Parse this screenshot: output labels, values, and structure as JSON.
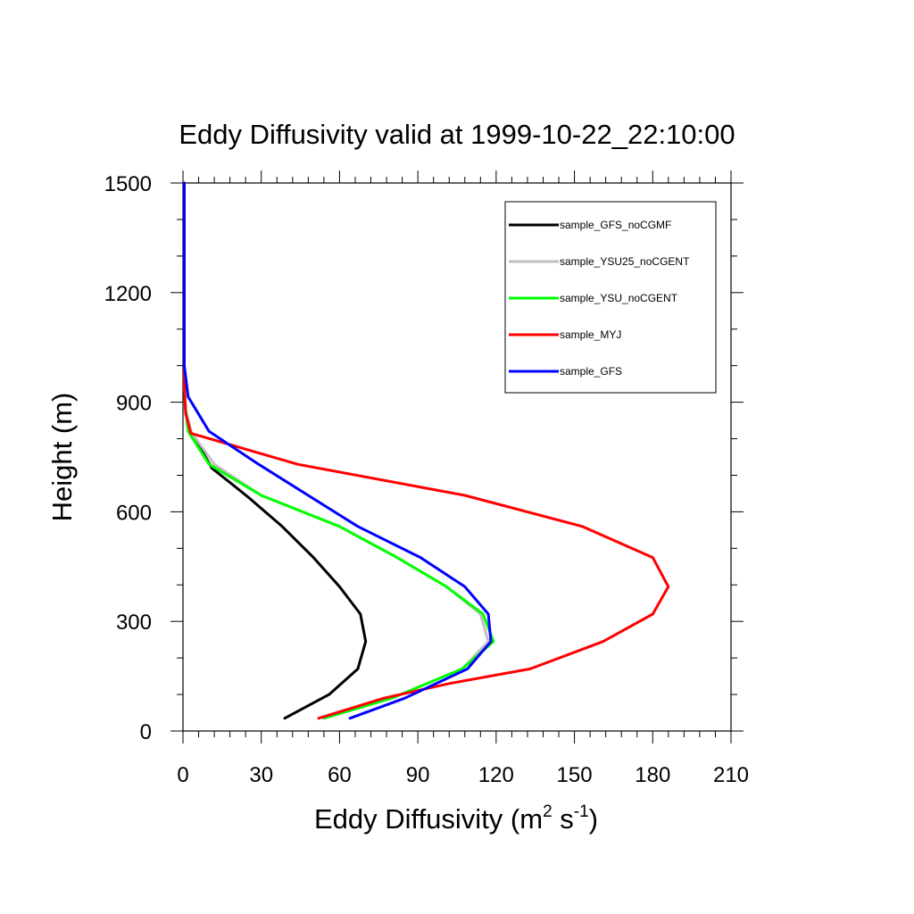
{
  "chart_data": {
    "type": "line",
    "title": "Eddy Diffusivity valid at 1999-10-22_22:10:00",
    "xlabel_main": "Eddy Diffusivity (m",
    "xlabel_sup1": "2",
    "xlabel_mid": " s",
    "xlabel_sup2": "-1",
    "xlabel_end": ")",
    "ylabel": "Height (m)",
    "xlim": [
      0,
      210
    ],
    "ylim": [
      0,
      1500
    ],
    "xticks": [
      0,
      30,
      60,
      90,
      120,
      150,
      180,
      210
    ],
    "yticks": [
      0,
      300,
      600,
      900,
      1200,
      1500
    ],
    "xtick_labels": [
      "0",
      "30",
      "60",
      "90",
      "120",
      "150",
      "180",
      "210"
    ],
    "ytick_labels": [
      "0",
      "300",
      "600",
      "900",
      "1200",
      "1500"
    ],
    "grid": false,
    "legend_position": "top-right",
    "series": [
      {
        "name": "sample_GFS_noCGMF",
        "color": "#000000",
        "points": [
          [
            39,
            35
          ],
          [
            56,
            100
          ],
          [
            67,
            170
          ],
          [
            70,
            245
          ],
          [
            68,
            320
          ],
          [
            60,
            395
          ],
          [
            50,
            475
          ],
          [
            38,
            560
          ],
          [
            25,
            640
          ],
          [
            11,
            720
          ],
          [
            3,
            820
          ],
          [
            1,
            880
          ],
          [
            0.5,
            950
          ],
          [
            0.5,
            1050
          ],
          [
            0.5,
            1200
          ],
          [
            0.5,
            1500
          ]
        ]
      },
      {
        "name": "sample_YSU25_noCGENT",
        "color": "#c0c0c0",
        "points": [
          [
            54,
            35
          ],
          [
            80,
            90
          ],
          [
            107,
            170
          ],
          [
            117,
            245
          ],
          [
            114,
            320
          ],
          [
            101,
            395
          ],
          [
            82,
            475
          ],
          [
            60,
            560
          ],
          [
            30,
            645
          ],
          [
            12,
            730
          ],
          [
            3,
            820
          ],
          [
            1,
            880
          ],
          [
            0.5,
            950
          ],
          [
            0.5,
            1050
          ],
          [
            0.5,
            1200
          ],
          [
            0.5,
            1500
          ]
        ]
      },
      {
        "name": "sample_YSU_noCGENT",
        "color": "#00ff00",
        "points": [
          [
            54,
            35
          ],
          [
            80,
            90
          ],
          [
            107,
            170
          ],
          [
            119,
            245
          ],
          [
            115,
            320
          ],
          [
            101,
            395
          ],
          [
            82,
            475
          ],
          [
            60,
            560
          ],
          [
            30,
            645
          ],
          [
            10,
            730
          ],
          [
            2,
            820
          ],
          [
            1,
            880
          ],
          [
            0.5,
            950
          ],
          [
            0.5,
            1050
          ],
          [
            0.5,
            1200
          ],
          [
            0.5,
            1500
          ]
        ]
      },
      {
        "name": "sample_MYJ",
        "color": "#ff0000",
        "points": [
          [
            52,
            35
          ],
          [
            77,
            90
          ],
          [
            102,
            130
          ],
          [
            133,
            170
          ],
          [
            161,
            245
          ],
          [
            180,
            320
          ],
          [
            186,
            395
          ],
          [
            180,
            475
          ],
          [
            153,
            560
          ],
          [
            108,
            645
          ],
          [
            44,
            730
          ],
          [
            3,
            815
          ],
          [
            1,
            870
          ],
          [
            0.5,
            950
          ],
          [
            0.5,
            1050
          ],
          [
            0.5,
            1200
          ],
          [
            0.5,
            1500
          ]
        ]
      },
      {
        "name": "sample_GFS",
        "color": "#0000ff",
        "points": [
          [
            64,
            35
          ],
          [
            85,
            90
          ],
          [
            109,
            170
          ],
          [
            118,
            245
          ],
          [
            117,
            320
          ],
          [
            108,
            395
          ],
          [
            91,
            475
          ],
          [
            67,
            560
          ],
          [
            29,
            730
          ],
          [
            10,
            820
          ],
          [
            2,
            915
          ],
          [
            0.5,
            1000
          ],
          [
            0.5,
            1050
          ],
          [
            0.5,
            1200
          ],
          [
            0.5,
            1500
          ]
        ]
      }
    ]
  }
}
